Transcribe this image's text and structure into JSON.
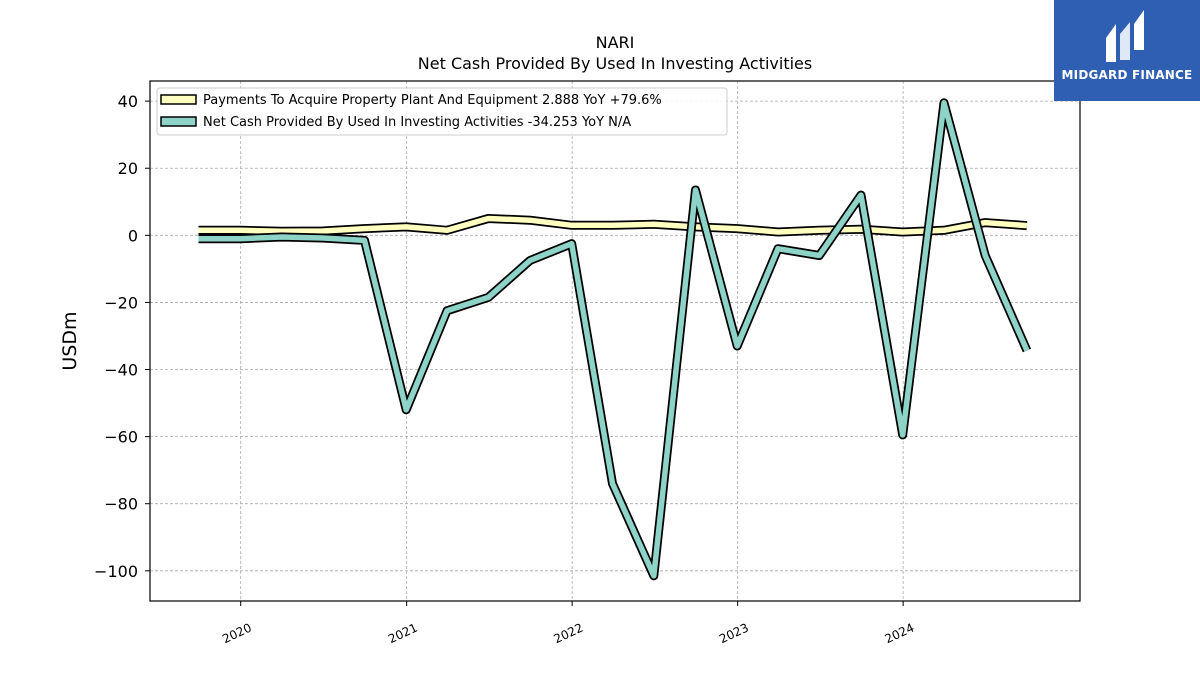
{
  "chart_data": {
    "type": "line",
    "title": "NARI",
    "subtitle": "Net Cash Provided By Used In Investing Activities",
    "ylabel": "USDm",
    "xlabel": "",
    "ylim": [
      -109,
      46
    ],
    "xlim": [
      "2019-06-15",
      "2025-01-25"
    ],
    "yticks": [
      -100,
      -80,
      -60,
      -40,
      -20,
      0,
      20,
      40
    ],
    "xticks": [
      "2020",
      "2021",
      "2022",
      "2023",
      "2024"
    ],
    "grid": true,
    "legend_position": "top-left",
    "x": [
      "2019-09-30",
      "2019-12-31",
      "2020-03-31",
      "2020-06-30",
      "2020-09-30",
      "2020-12-31",
      "2021-03-31",
      "2021-06-30",
      "2021-09-30",
      "2021-12-31",
      "2022-03-31",
      "2022-06-30",
      "2022-09-30",
      "2022-12-31",
      "2023-03-31",
      "2023-06-30",
      "2023-09-30",
      "2023-12-31",
      "2024-03-31",
      "2024-06-30",
      "2024-09-30"
    ],
    "series": [
      {
        "name": "Payments To Acquire Property Plant And Equipment",
        "legend_label": "Payments To Acquire Property Plant And Equipment  2.888 YoY +79.6%",
        "color": "#ffffc0",
        "values": [
          1.5,
          1.5,
          1.2,
          1.3,
          2.0,
          2.5,
          1.5,
          5.0,
          4.5,
          3.0,
          3.0,
          3.3,
          2.5,
          2.0,
          1.0,
          1.5,
          1.8,
          1.0,
          1.5,
          3.8,
          2.9
        ]
      },
      {
        "name": "Net Cash Provided By Used In Investing Activities",
        "legend_label": "Net Cash Provided By Used In Investing Activities  -34.253 YoY N/A",
        "color": "#8dd3c7",
        "values": [
          -1.0,
          -1.0,
          -0.5,
          -0.8,
          -1.5,
          -52.0,
          -22.5,
          -18.5,
          -7.5,
          -2.5,
          -74.0,
          -101.5,
          13.5,
          -33.0,
          -4.0,
          -6.0,
          12.0,
          -59.5,
          39.5,
          -6.0,
          -34.3
        ]
      }
    ]
  },
  "logo": {
    "text": "MIDGARD FINANCE"
  }
}
